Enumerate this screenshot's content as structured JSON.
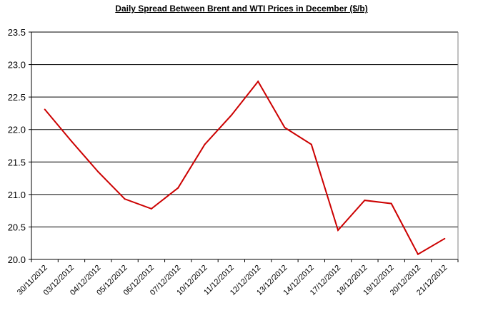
{
  "chart_data": {
    "type": "line",
    "title": "Daily  Spread Between Brent and WTI Prices in  December ($/b)",
    "xlabel": "",
    "ylabel": "",
    "ylim": [
      20.0,
      23.5
    ],
    "yticks": [
      "23.5",
      "23.0",
      "22.5",
      "22.0",
      "21.5",
      "21.0",
      "20.5",
      "20.0"
    ],
    "ytick_values": [
      23.5,
      23.0,
      22.5,
      22.0,
      21.5,
      21.0,
      20.5,
      20.0
    ],
    "grid": true,
    "legend": "none",
    "categories": [
      "30/11/2012",
      "03/12/2012",
      "04/12/2012",
      "05/12/2012",
      "06/12/2012",
      "07/12/2012",
      "10/12/2012",
      "11/12/2012",
      "12/12/2012",
      "13/12/2012",
      "14/12/2012",
      "17/12/2012",
      "18/12/2012",
      "19/12/2012",
      "20/12/2012",
      "21/12/2012"
    ],
    "series": [
      {
        "color": "#cc0000",
        "values": [
          22.31,
          21.82,
          21.35,
          20.93,
          20.78,
          21.1,
          21.77,
          22.22,
          22.74,
          22.03,
          21.77,
          20.45,
          20.91,
          20.86,
          20.08,
          20.32
        ]
      }
    ]
  }
}
